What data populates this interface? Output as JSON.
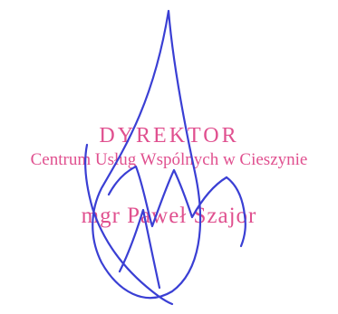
{
  "stamp": {
    "title": "DYREKTOR",
    "organization": "Centrum Usług Wspólnych w Cieszynie",
    "name": "mgr Paweł Szajor",
    "color": "#e0508f"
  },
  "signature": {
    "color": "#3a3fd4"
  }
}
